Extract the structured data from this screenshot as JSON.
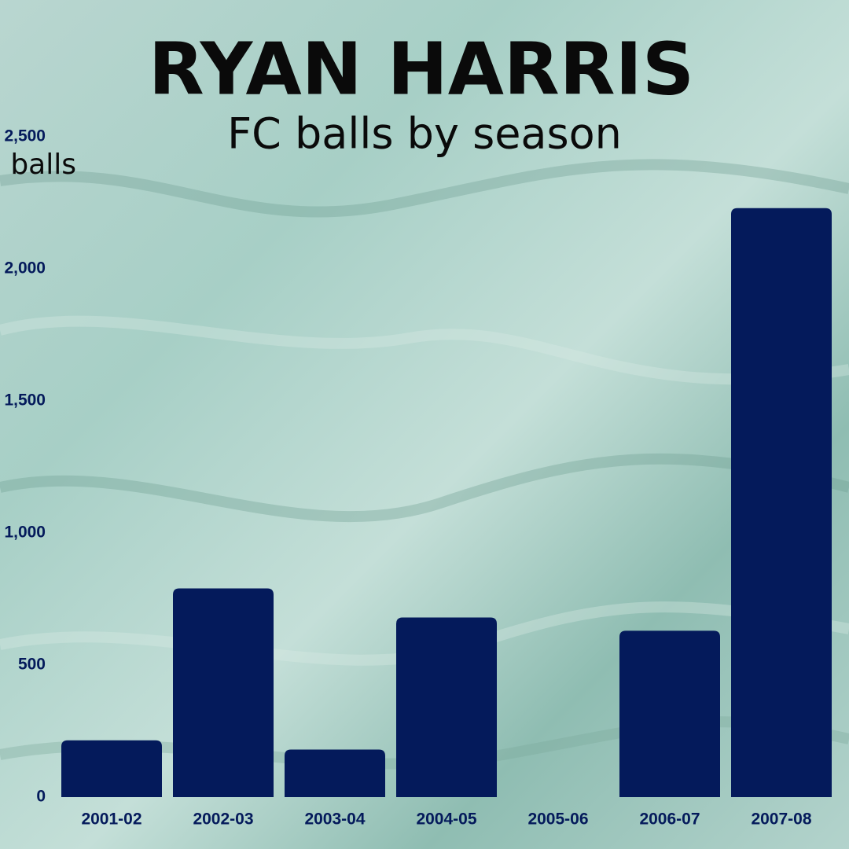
{
  "chart_data": {
    "type": "bar",
    "title": "RYAN HARRIS",
    "subtitle": "FC balls by season",
    "y_label": "balls",
    "categories": [
      "2001-02",
      "2002-03",
      "2003-04",
      "2004-05",
      "2005-06",
      "2006-07",
      "2007-08"
    ],
    "values": [
      215,
      790,
      180,
      680,
      0,
      630,
      2230
    ],
    "color": "#041a5b",
    "ylim": [
      0,
      2500
    ],
    "yticks": [
      0,
      500,
      {
        "value": 1000,
        "label": "1,000"
      },
      {
        "value": 1500,
        "label": "1,500"
      },
      {
        "value": 2000,
        "label": "2,000"
      },
      {
        "value": 2500,
        "label": "2,500"
      }
    ],
    "grid": false
  }
}
